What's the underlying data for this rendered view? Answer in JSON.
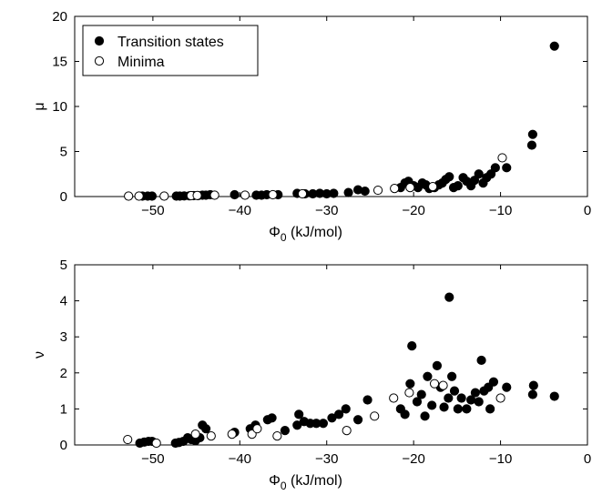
{
  "chart_data": [
    {
      "type": "scatter",
      "title": "",
      "xlabel": "Φ",
      "xlabel_sub": "0",
      "xlabel_unit": " (kJ/mol)",
      "ylabel": "μ",
      "xlim": [
        -59,
        0
      ],
      "ylim": [
        0,
        20
      ],
      "xticks": [
        -50,
        -40,
        -30,
        -20,
        -10,
        0
      ],
      "yticks": [
        0,
        5,
        10,
        15,
        20
      ],
      "grid": false,
      "legend": {
        "position": "top-left",
        "entries": [
          "Transition states",
          "Minima"
        ]
      },
      "series": [
        {
          "name": "Transition states",
          "marker": "filled-circle",
          "points": [
            [
              -51.2,
              0.05
            ],
            [
              -50.6,
              0.05
            ],
            [
              -50.1,
              0.05
            ],
            [
              -47.3,
              0.05
            ],
            [
              -46.9,
              0.05
            ],
            [
              -46.4,
              0.07
            ],
            [
              -45.8,
              0.08
            ],
            [
              -45.3,
              0.1
            ],
            [
              -44.8,
              0.1
            ],
            [
              -44.3,
              0.15
            ],
            [
              -43.9,
              0.15
            ],
            [
              -43.4,
              0.2
            ],
            [
              -40.6,
              0.2
            ],
            [
              -38.1,
              0.15
            ],
            [
              -37.5,
              0.15
            ],
            [
              -36.9,
              0.2
            ],
            [
              -35.6,
              0.2
            ],
            [
              -33.4,
              0.35
            ],
            [
              -32.5,
              0.3
            ],
            [
              -31.6,
              0.3
            ],
            [
              -30.8,
              0.35
            ],
            [
              -30.0,
              0.3
            ],
            [
              -29.2,
              0.35
            ],
            [
              -27.5,
              0.45
            ],
            [
              -26.4,
              0.75
            ],
            [
              -25.6,
              0.6
            ],
            [
              -21.5,
              1.0
            ],
            [
              -21.0,
              1.5
            ],
            [
              -20.6,
              1.7
            ],
            [
              -20.0,
              1.2
            ],
            [
              -19.5,
              1.0
            ],
            [
              -19.0,
              1.5
            ],
            [
              -18.6,
              1.3
            ],
            [
              -18.2,
              0.9
            ],
            [
              -17.6,
              1.0
            ],
            [
              -17.1,
              1.3
            ],
            [
              -16.7,
              1.5
            ],
            [
              -16.3,
              1.9
            ],
            [
              -15.9,
              2.2
            ],
            [
              -15.4,
              1.0
            ],
            [
              -14.9,
              1.2
            ],
            [
              -14.3,
              2.1
            ],
            [
              -13.9,
              1.7
            ],
            [
              -13.4,
              1.2
            ],
            [
              -13.0,
              1.8
            ],
            [
              -12.5,
              2.5
            ],
            [
              -12.0,
              1.5
            ],
            [
              -11.6,
              2.1
            ],
            [
              -11.1,
              2.5
            ],
            [
              -10.6,
              3.2
            ],
            [
              -9.3,
              3.2
            ],
            [
              -6.4,
              5.7
            ],
            [
              -6.3,
              6.9
            ],
            [
              -3.8,
              16.7
            ]
          ]
        },
        {
          "name": "Minima",
          "marker": "open-circle",
          "points": [
            [
              -52.8,
              0.05
            ],
            [
              -51.6,
              0.05
            ],
            [
              -48.7,
              0.05
            ],
            [
              -45.6,
              0.1
            ],
            [
              -44.9,
              0.12
            ],
            [
              -42.9,
              0.15
            ],
            [
              -39.4,
              0.15
            ],
            [
              -36.2,
              0.2
            ],
            [
              -32.8,
              0.3
            ],
            [
              -24.1,
              0.7
            ],
            [
              -22.2,
              0.9
            ],
            [
              -20.4,
              1.0
            ],
            [
              -17.8,
              1.1
            ],
            [
              -9.8,
              4.3
            ]
          ]
        }
      ]
    },
    {
      "type": "scatter",
      "title": "",
      "xlabel": "Φ",
      "xlabel_sub": "0",
      "xlabel_unit": " (kJ/mol)",
      "ylabel": "ν",
      "xlim": [
        -59,
        0
      ],
      "ylim": [
        0,
        5
      ],
      "xticks": [
        -50,
        -40,
        -30,
        -20,
        -10,
        0
      ],
      "yticks": [
        0,
        1,
        2,
        3,
        4,
        5
      ],
      "grid": false,
      "series": [
        {
          "name": "Transition states",
          "marker": "filled-circle",
          "points": [
            [
              -51.5,
              0.05
            ],
            [
              -51.0,
              0.08
            ],
            [
              -50.5,
              0.1
            ],
            [
              -50.1,
              0.1
            ],
            [
              -47.4,
              0.05
            ],
            [
              -47.0,
              0.07
            ],
            [
              -46.5,
              0.1
            ],
            [
              -46.0,
              0.2
            ],
            [
              -45.6,
              0.15
            ],
            [
              -45.1,
              0.12
            ],
            [
              -44.6,
              0.2
            ],
            [
              -44.3,
              0.55
            ],
            [
              -43.9,
              0.45
            ],
            [
              -40.6,
              0.35
            ],
            [
              -38.8,
              0.45
            ],
            [
              -38.2,
              0.55
            ],
            [
              -36.8,
              0.7
            ],
            [
              -36.3,
              0.75
            ],
            [
              -34.8,
              0.4
            ],
            [
              -33.4,
              0.55
            ],
            [
              -33.2,
              0.85
            ],
            [
              -32.6,
              0.65
            ],
            [
              -31.9,
              0.6
            ],
            [
              -31.2,
              0.6
            ],
            [
              -30.4,
              0.6
            ],
            [
              -29.4,
              0.75
            ],
            [
              -28.6,
              0.85
            ],
            [
              -27.8,
              1.0
            ],
            [
              -26.4,
              0.7
            ],
            [
              -25.3,
              1.25
            ],
            [
              -21.5,
              1.0
            ],
            [
              -21.0,
              0.85
            ],
            [
              -20.4,
              1.7
            ],
            [
              -20.2,
              2.75
            ],
            [
              -19.6,
              1.2
            ],
            [
              -19.1,
              1.4
            ],
            [
              -18.7,
              0.8
            ],
            [
              -18.4,
              1.9
            ],
            [
              -17.9,
              1.1
            ],
            [
              -17.3,
              2.2
            ],
            [
              -16.9,
              1.6
            ],
            [
              -16.5,
              1.05
            ],
            [
              -16.0,
              1.3
            ],
            [
              -15.9,
              4.1
            ],
            [
              -15.6,
              1.9
            ],
            [
              -15.3,
              1.5
            ],
            [
              -14.9,
              1.0
            ],
            [
              -14.5,
              1.3
            ],
            [
              -13.9,
              1.0
            ],
            [
              -13.4,
              1.25
            ],
            [
              -12.9,
              1.45
            ],
            [
              -12.5,
              1.2
            ],
            [
              -12.2,
              2.35
            ],
            [
              -11.9,
              1.5
            ],
            [
              -11.4,
              1.6
            ],
            [
              -11.2,
              1.0
            ],
            [
              -10.8,
              1.75
            ],
            [
              -9.3,
              1.6
            ],
            [
              -6.3,
              1.4
            ],
            [
              -6.2,
              1.65
            ],
            [
              -3.8,
              1.35
            ]
          ]
        },
        {
          "name": "Minima",
          "marker": "open-circle",
          "points": [
            [
              -52.9,
              0.15
            ],
            [
              -49.6,
              0.05
            ],
            [
              -45.1,
              0.3
            ],
            [
              -43.3,
              0.25
            ],
            [
              -40.9,
              0.3
            ],
            [
              -38.6,
              0.3
            ],
            [
              -38.0,
              0.45
            ],
            [
              -35.7,
              0.25
            ],
            [
              -27.7,
              0.4
            ],
            [
              -24.5,
              0.8
            ],
            [
              -22.3,
              1.3
            ],
            [
              -20.5,
              1.45
            ],
            [
              -17.6,
              1.7
            ],
            [
              -16.6,
              1.65
            ],
            [
              -10.0,
              1.3
            ]
          ]
        }
      ]
    }
  ]
}
